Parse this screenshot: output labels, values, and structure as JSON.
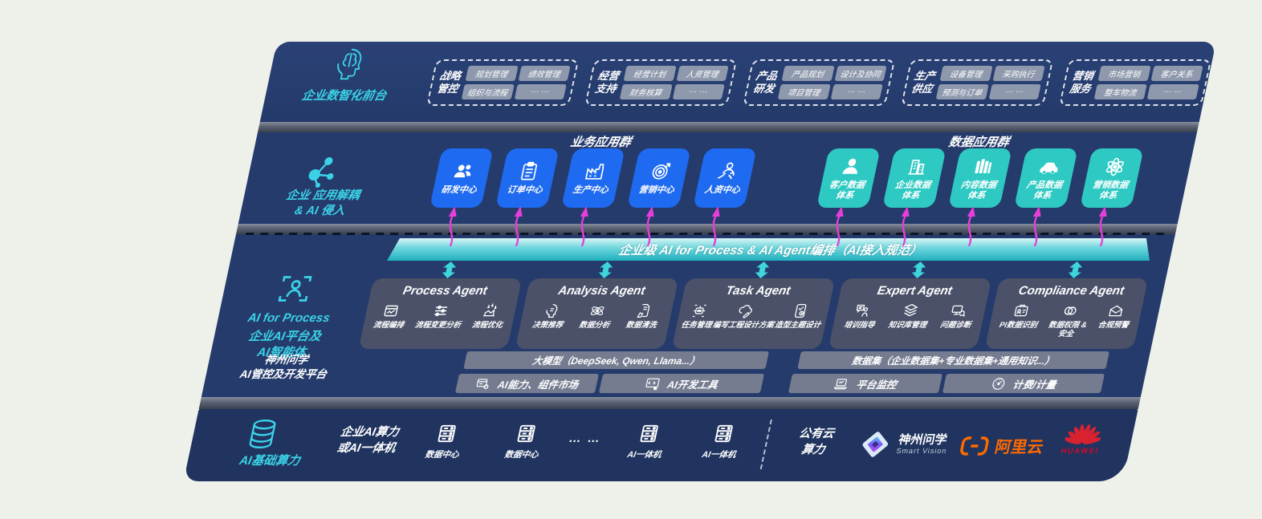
{
  "colors": {
    "panel_navy": "#253b6c",
    "infra_navy": "#20345f",
    "accent_cyan": "#3bd2e7",
    "blue_box": "#1e6af0",
    "teal_box": "#2fc9c3",
    "bar_teal": "#1fb0c0",
    "magenta": "#e63fd9",
    "agent_grey": "#4a5169",
    "pill_grey": "#98a0b1",
    "ali_orange": "#ff6a00",
    "huawei_red": "#d8222f"
  },
  "front_layer": {
    "label": "企业数智化前台",
    "icon": "head-brain-icon",
    "groups": [
      {
        "name": [
          "战略",
          "管控"
        ],
        "pills": [
          "规划管理",
          "绩效管理",
          "组织与流程",
          "… …"
        ]
      },
      {
        "name": [
          "经营",
          "支持"
        ],
        "pills": [
          "经营计划",
          "人资管理",
          "财务核算",
          "… …"
        ]
      },
      {
        "name": [
          "产品",
          "研发"
        ],
        "pills": [
          "产品规划",
          "设计及协同",
          "项目管理",
          "… …"
        ]
      },
      {
        "name": [
          "生产",
          "供应"
        ],
        "pills": [
          "设备管理",
          "采购执行",
          "预测与订单",
          "… …"
        ]
      },
      {
        "name": [
          "营销",
          "服务"
        ],
        "pills": [
          "市场营销",
          "客户关系",
          "整车物流",
          "… …"
        ]
      }
    ]
  },
  "apps_layer": {
    "label": "企业 应用解耦\n& AI 侵入",
    "icon": "molecule-icon",
    "business_group": {
      "title": "业务应用群",
      "items": [
        {
          "label": "研发中心",
          "icon": "users"
        },
        {
          "label": "订单中心",
          "icon": "clipboard"
        },
        {
          "label": "生产中心",
          "icon": "factory"
        },
        {
          "label": "营销中心",
          "icon": "target"
        },
        {
          "label": "人资中心",
          "icon": "persongrow"
        }
      ]
    },
    "data_group": {
      "title": "数据应用群",
      "items": [
        {
          "label": "客户数据\n体系",
          "icon": "person"
        },
        {
          "label": "企业数据\n体系",
          "icon": "building"
        },
        {
          "label": "内容数据\n体系",
          "icon": "books"
        },
        {
          "label": "产品数据\n体系",
          "icon": "car"
        },
        {
          "label": "营销数据\n体系",
          "icon": "atom32"
        }
      ]
    }
  },
  "orchestration_bar": {
    "label": "企业级 AI for Process & AI Agent编排（AI接入规范）"
  },
  "ai_layer": {
    "label_top": "AI for Process",
    "label_sub": "企业AI平台及\nAI智能体",
    "icon": "person-scan-icon",
    "agents": [
      {
        "title": "Process Agent",
        "items": [
          {
            "label": "流程编排",
            "icon": "flow"
          },
          {
            "label": "流程变更分析",
            "icon": "sliders"
          },
          {
            "label": "流程优化",
            "icon": "optimize"
          }
        ]
      },
      {
        "title": "Analysis Agent",
        "items": [
          {
            "label": "决策推荐",
            "icon": "headidea"
          },
          {
            "label": "数据分析",
            "icon": "atom"
          },
          {
            "label": "数据清洗",
            "icon": "clean"
          }
        ]
      },
      {
        "title": "Task Agent",
        "items": [
          {
            "label": "任务管理",
            "icon": "robot"
          },
          {
            "label": "编写工程设计方案",
            "icon": "cloudpen"
          },
          {
            "label": "造型主题设计",
            "icon": "tablet"
          }
        ]
      },
      {
        "title": "Expert Agent",
        "items": [
          {
            "label": "培训指导",
            "icon": "train"
          },
          {
            "label": "知识库管理",
            "icon": "layers"
          },
          {
            "label": "问题诊断",
            "icon": "diagnose"
          }
        ]
      },
      {
        "title": "Compliance Agent",
        "items": [
          {
            "label": "PI数据识别",
            "icon": "idcard"
          },
          {
            "label": "数据权限 &\n安全",
            "icon": "rings"
          },
          {
            "label": "合规预警",
            "icon": "mail"
          }
        ]
      }
    ],
    "platform": {
      "label": "神州问学\nAI管控及开发平台",
      "model_bar": "大模型（DeepSeek, Qwen, Llama...）",
      "model_cells": [
        {
          "label": "AI能力、组件市场",
          "icon": "market"
        },
        {
          "label": "AI开发工具",
          "icon": "devtools"
        }
      ],
      "data_bar": "数据集（企业数据集+专业数据集+通用知识...）",
      "data_cells": [
        {
          "label": "平台监控",
          "icon": "monitor"
        },
        {
          "label": "计费/计量",
          "icon": "gauge"
        }
      ]
    }
  },
  "infra_layer": {
    "label": "AI基础算力",
    "icon": "database-icon",
    "compute_label": "企业AI算力\n或AI一体机",
    "nodes": [
      {
        "label": "数据中心",
        "icon": "server"
      },
      {
        "label": "数据中心",
        "icon": "server"
      },
      {
        "label": "… …",
        "icon": "dots"
      },
      {
        "label": "AI一体机",
        "icon": "server"
      },
      {
        "label": "AI一体机",
        "icon": "server"
      }
    ],
    "public_cloud": "公有云\n算力",
    "vendors": {
      "shenzhou": {
        "name": "神州问学",
        "sub": "Smart Vision"
      },
      "aliyun": {
        "name": "阿里云"
      },
      "huawei": {
        "name": "HUAWEI"
      }
    }
  }
}
